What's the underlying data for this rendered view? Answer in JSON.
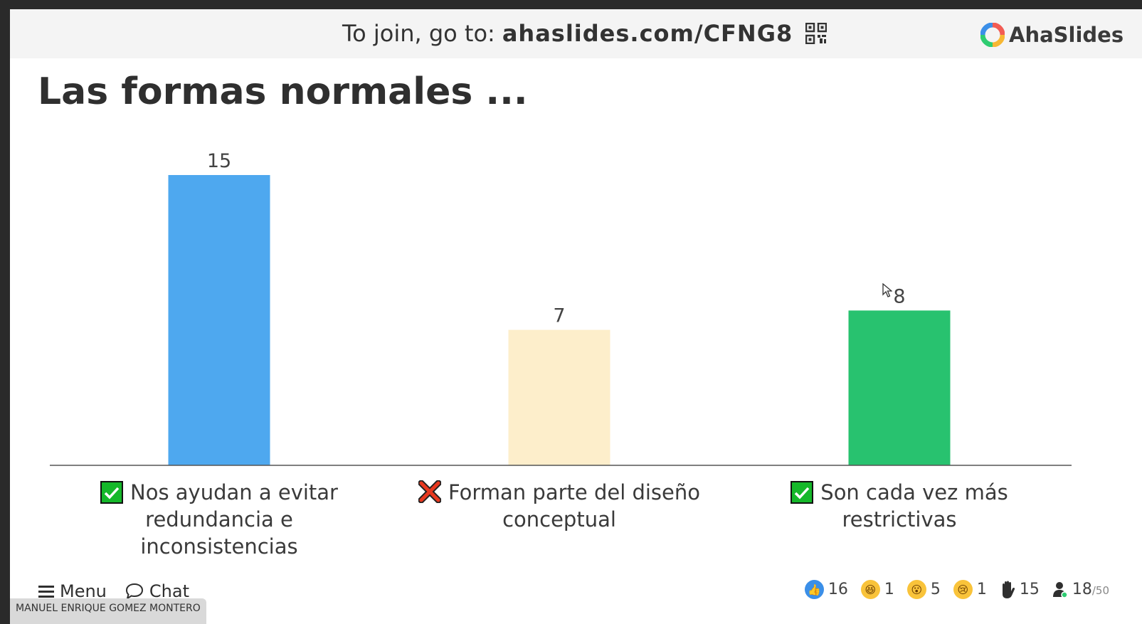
{
  "header": {
    "join_prefix": "To join, go to:",
    "join_code": "ahaslides.com/CFNG8",
    "brand": "AhaSlides"
  },
  "slide": {
    "title": "Las formas normales ..."
  },
  "chart_data": {
    "type": "bar",
    "categories": [
      "Nos ayudan a evitar redundancia e inconsistencias",
      "Forman parte del diseño conceptual",
      "Son cada vez más restrictivas"
    ],
    "values": [
      15,
      7,
      8
    ],
    "correct": [
      true,
      false,
      true
    ],
    "colors": [
      "#4ea8ef",
      "#fdeecb",
      "#28c26f"
    ],
    "ylim": [
      0,
      15
    ],
    "title": "",
    "xlabel": "",
    "ylabel": ""
  },
  "footer": {
    "menu_label": "Menu",
    "chat_label": "Chat",
    "reactions": [
      {
        "icon": "thumbs-up-icon",
        "count": "16",
        "color": "#3b8fe8"
      },
      {
        "icon": "laughing-emoji-icon",
        "count": "1",
        "color": "#f9c33a"
      },
      {
        "icon": "surprised-emoji-icon",
        "count": "5",
        "color": "#f9c33a"
      },
      {
        "icon": "sad-emoji-icon",
        "count": "1",
        "color": "#f9c33a"
      }
    ],
    "raised_hands": "15",
    "audience_count": "18",
    "audience_max": "/50"
  },
  "presenter_name": "MANUEL ENRIQUE GOMEZ MONTERO"
}
